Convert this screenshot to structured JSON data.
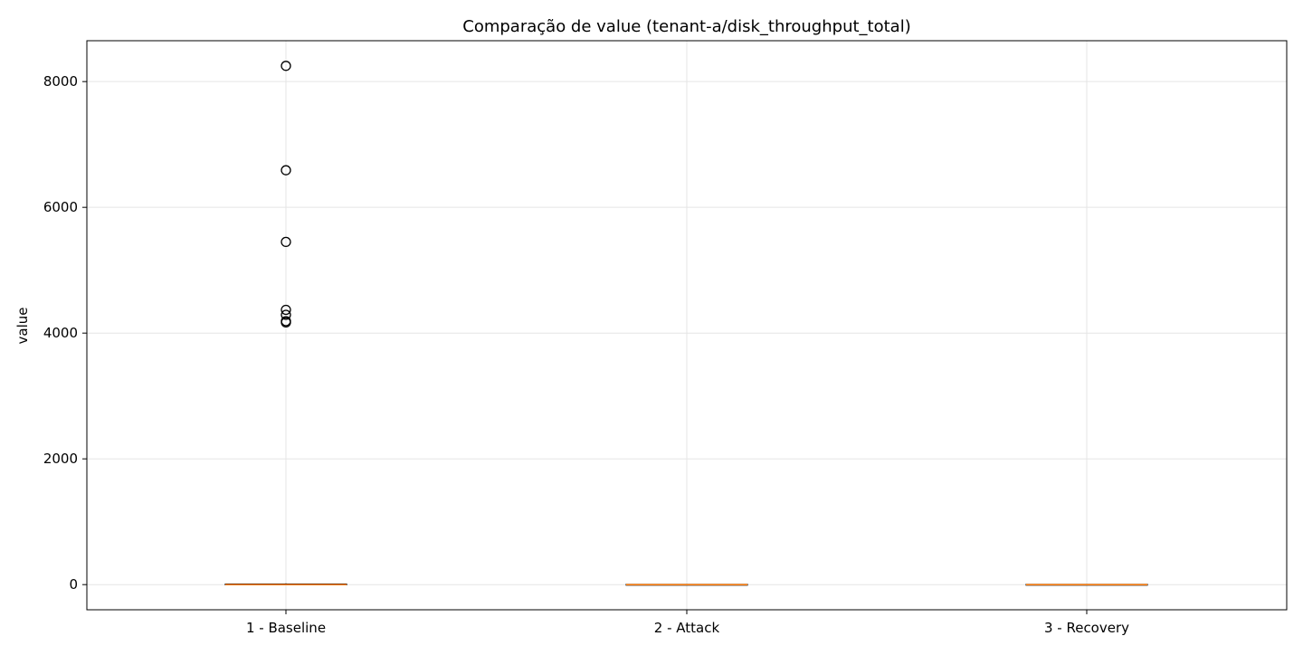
{
  "chart_data": {
    "type": "box",
    "title": "Comparação de value (tenant-a/disk_throughput_total)",
    "xlabel": "",
    "ylabel": "value",
    "categories": [
      "1 - Baseline",
      "2 - Attack",
      "3 - Recovery"
    ],
    "ylim": [
      -400,
      8650
    ],
    "yticks": [
      0,
      2000,
      4000,
      6000,
      8000
    ],
    "grid": true,
    "boxes": [
      {
        "category": "1 - Baseline",
        "whisker_low": 0,
        "q1": 0,
        "median": 0,
        "q3": 10,
        "whisker_high": 20,
        "outliers": [
          4170,
          4190,
          4290,
          4370,
          5450,
          6590,
          8250
        ]
      },
      {
        "category": "2 - Attack",
        "whisker_low": 0,
        "q1": 0,
        "median": 0,
        "q3": 5,
        "whisker_high": 10,
        "outliers": []
      },
      {
        "category": "3 - Recovery",
        "whisker_low": 0,
        "q1": 0,
        "median": 0,
        "q3": 5,
        "whisker_high": 10,
        "outliers": []
      }
    ],
    "colors": {
      "median": "#ff7f0e",
      "box_edge": "#000000",
      "grid": "#e5e5e5",
      "outlier_edge": "#000000"
    }
  }
}
